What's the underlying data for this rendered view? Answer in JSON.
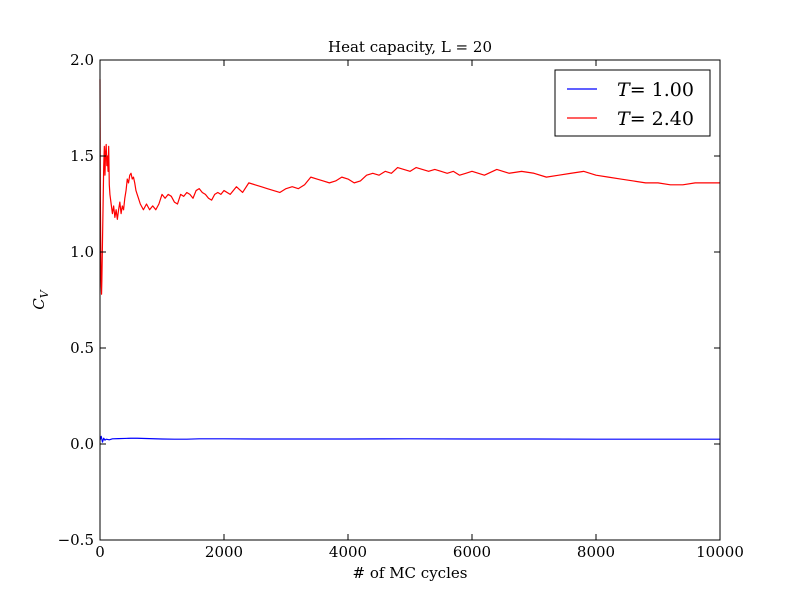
{
  "chart_data": {
    "type": "line",
    "title": "Heat capacity, L = 20",
    "xlabel": "# of MC cycles",
    "ylabel_symbol": "C",
    "ylabel_subscript": "V",
    "xlim": [
      0,
      10000
    ],
    "ylim": [
      -0.5,
      2.0
    ],
    "xticks": [
      0,
      2000,
      4000,
      6000,
      8000,
      10000
    ],
    "xtick_labels": [
      "0",
      "2000",
      "4000",
      "6000",
      "8000",
      "10000"
    ],
    "yticks": [
      -0.5,
      0.0,
      0.5,
      1.0,
      1.5,
      2.0
    ],
    "ytick_labels": [
      "−0.5",
      "0.0",
      "0.5",
      "1.0",
      "1.5",
      "2.0"
    ],
    "grid": false,
    "legend_position": "top-right",
    "series": [
      {
        "name": "T= 1.00",
        "legend_symbol": "T",
        "legend_value": "= 1.00",
        "color": "#0000ff",
        "x": [
          0,
          20,
          40,
          60,
          80,
          100,
          150,
          200,
          300,
          400,
          500,
          600,
          800,
          1000,
          1200,
          1400,
          1600,
          2000,
          2500,
          3000,
          4000,
          5000,
          6000,
          7000,
          8000,
          9000,
          10000
        ],
        "y": [
          0.02,
          0.04,
          0.01,
          0.03,
          0.02,
          0.025,
          0.022,
          0.027,
          0.028,
          0.029,
          0.03,
          0.03,
          0.028,
          0.026,
          0.025,
          0.025,
          0.027,
          0.027,
          0.026,
          0.026,
          0.026,
          0.027,
          0.026,
          0.026,
          0.025,
          0.025,
          0.025
        ]
      },
      {
        "name": "T= 2.40",
        "legend_symbol": "T",
        "legend_value": "= 2.40",
        "color": "#ff0000",
        "x": [
          0,
          5,
          10,
          15,
          20,
          25,
          30,
          40,
          50,
          60,
          70,
          80,
          90,
          100,
          110,
          120,
          130,
          140,
          150,
          160,
          180,
          200,
          220,
          240,
          260,
          280,
          300,
          320,
          340,
          360,
          380,
          400,
          420,
          440,
          460,
          480,
          500,
          520,
          540,
          560,
          580,
          600,
          620,
          650,
          700,
          750,
          800,
          850,
          900,
          950,
          1000,
          1050,
          1100,
          1150,
          1200,
          1250,
          1300,
          1350,
          1400,
          1450,
          1500,
          1550,
          1600,
          1650,
          1700,
          1750,
          1800,
          1850,
          1900,
          1950,
          2000,
          2100,
          2200,
          2300,
          2400,
          2500,
          2600,
          2700,
          2800,
          2900,
          3000,
          3100,
          3200,
          3300,
          3400,
          3500,
          3600,
          3700,
          3800,
          3900,
          4000,
          4100,
          4200,
          4300,
          4400,
          4500,
          4600,
          4700,
          4800,
          4900,
          5000,
          5100,
          5200,
          5300,
          5400,
          5500,
          5600,
          5700,
          5800,
          5900,
          6000,
          6200,
          6400,
          6600,
          6800,
          7000,
          7200,
          7400,
          7600,
          7800,
          8000,
          8200,
          8400,
          8600,
          8800,
          9000,
          9200,
          9400,
          9600,
          9800,
          10000
        ],
        "y": [
          1.9,
          1.3,
          1.1,
          0.9,
          0.82,
          0.78,
          0.85,
          1.05,
          1.25,
          1.45,
          1.55,
          1.4,
          1.52,
          1.56,
          1.45,
          1.5,
          1.42,
          1.55,
          1.35,
          1.3,
          1.25,
          1.2,
          1.24,
          1.18,
          1.22,
          1.17,
          1.22,
          1.26,
          1.2,
          1.24,
          1.22,
          1.28,
          1.32,
          1.38,
          1.36,
          1.4,
          1.41,
          1.38,
          1.39,
          1.36,
          1.32,
          1.3,
          1.28,
          1.25,
          1.22,
          1.25,
          1.22,
          1.24,
          1.22,
          1.25,
          1.3,
          1.28,
          1.3,
          1.29,
          1.26,
          1.25,
          1.3,
          1.29,
          1.31,
          1.3,
          1.28,
          1.32,
          1.33,
          1.31,
          1.3,
          1.28,
          1.27,
          1.3,
          1.31,
          1.3,
          1.32,
          1.3,
          1.34,
          1.31,
          1.36,
          1.35,
          1.34,
          1.33,
          1.32,
          1.31,
          1.33,
          1.34,
          1.33,
          1.35,
          1.39,
          1.38,
          1.37,
          1.36,
          1.37,
          1.39,
          1.38,
          1.36,
          1.37,
          1.4,
          1.41,
          1.4,
          1.42,
          1.41,
          1.44,
          1.43,
          1.42,
          1.44,
          1.43,
          1.42,
          1.43,
          1.42,
          1.41,
          1.42,
          1.4,
          1.41,
          1.42,
          1.4,
          1.43,
          1.41,
          1.42,
          1.41,
          1.39,
          1.4,
          1.41,
          1.42,
          1.4,
          1.39,
          1.38,
          1.37,
          1.36,
          1.36,
          1.35,
          1.35,
          1.36,
          1.36,
          1.36
        ]
      }
    ]
  }
}
